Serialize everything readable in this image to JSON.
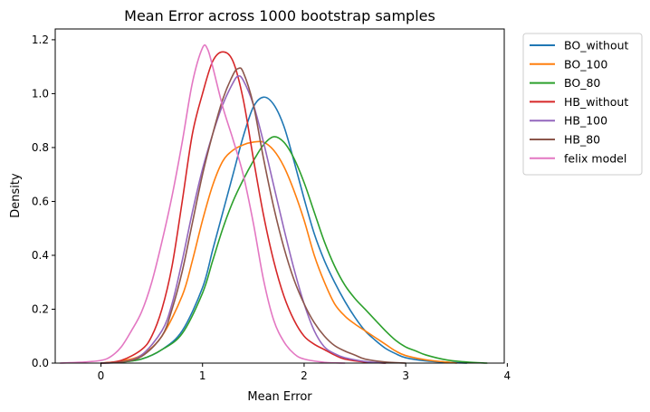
{
  "chart_data": {
    "type": "line",
    "title": "Mean Error across 1000 bootstrap samples",
    "xlabel": "Mean Error",
    "ylabel": "Density",
    "xlim": [
      -0.45,
      3.97
    ],
    "ylim": [
      0,
      1.24
    ],
    "xticks": [
      0,
      1,
      2,
      3,
      4
    ],
    "yticks": [
      0.0,
      0.2,
      0.4,
      0.6,
      0.8,
      1.0,
      1.2
    ],
    "legend_position": "outside-top-right",
    "grid": false,
    "series": [
      {
        "name": "BO_without",
        "color": "#1f77b4",
        "points": [
          [
            0.0,
            0.0
          ],
          [
            0.2,
            0.004
          ],
          [
            0.4,
            0.015
          ],
          [
            0.6,
            0.05
          ],
          [
            0.8,
            0.12
          ],
          [
            1.0,
            0.28
          ],
          [
            1.1,
            0.42
          ],
          [
            1.2,
            0.56
          ],
          [
            1.3,
            0.7
          ],
          [
            1.4,
            0.84
          ],
          [
            1.5,
            0.95
          ],
          [
            1.6,
            0.987
          ],
          [
            1.7,
            0.96
          ],
          [
            1.8,
            0.88
          ],
          [
            1.9,
            0.75
          ],
          [
            2.0,
            0.61
          ],
          [
            2.1,
            0.48
          ],
          [
            2.2,
            0.38
          ],
          [
            2.3,
            0.3
          ],
          [
            2.4,
            0.23
          ],
          [
            2.5,
            0.17
          ],
          [
            2.6,
            0.12
          ],
          [
            2.7,
            0.085
          ],
          [
            2.8,
            0.055
          ],
          [
            2.9,
            0.035
          ],
          [
            3.0,
            0.02
          ],
          [
            3.2,
            0.008
          ],
          [
            3.4,
            0.003
          ],
          [
            3.6,
            0.0
          ]
        ]
      },
      {
        "name": "BO_100",
        "color": "#ff7f0e",
        "points": [
          [
            0.0,
            0.0
          ],
          [
            0.2,
            0.008
          ],
          [
            0.4,
            0.03
          ],
          [
            0.6,
            0.1
          ],
          [
            0.8,
            0.25
          ],
          [
            0.9,
            0.38
          ],
          [
            1.0,
            0.53
          ],
          [
            1.1,
            0.66
          ],
          [
            1.2,
            0.75
          ],
          [
            1.3,
            0.79
          ],
          [
            1.4,
            0.81
          ],
          [
            1.5,
            0.82
          ],
          [
            1.6,
            0.82
          ],
          [
            1.7,
            0.79
          ],
          [
            1.8,
            0.73
          ],
          [
            1.9,
            0.64
          ],
          [
            2.0,
            0.53
          ],
          [
            2.1,
            0.4
          ],
          [
            2.2,
            0.3
          ],
          [
            2.3,
            0.22
          ],
          [
            2.4,
            0.175
          ],
          [
            2.5,
            0.145
          ],
          [
            2.6,
            0.12
          ],
          [
            2.7,
            0.095
          ],
          [
            2.8,
            0.07
          ],
          [
            2.9,
            0.045
          ],
          [
            3.0,
            0.028
          ],
          [
            3.2,
            0.012
          ],
          [
            3.4,
            0.004
          ],
          [
            3.5,
            0.0
          ]
        ]
      },
      {
        "name": "BO_80",
        "color": "#2ca02c",
        "points": [
          [
            0.0,
            0.0
          ],
          [
            0.2,
            0.004
          ],
          [
            0.4,
            0.015
          ],
          [
            0.6,
            0.05
          ],
          [
            0.8,
            0.11
          ],
          [
            1.0,
            0.26
          ],
          [
            1.1,
            0.38
          ],
          [
            1.2,
            0.5
          ],
          [
            1.3,
            0.6
          ],
          [
            1.4,
            0.68
          ],
          [
            1.5,
            0.75
          ],
          [
            1.6,
            0.81
          ],
          [
            1.7,
            0.84
          ],
          [
            1.8,
            0.82
          ],
          [
            1.9,
            0.76
          ],
          [
            2.0,
            0.67
          ],
          [
            2.1,
            0.56
          ],
          [
            2.2,
            0.45
          ],
          [
            2.3,
            0.36
          ],
          [
            2.4,
            0.29
          ],
          [
            2.5,
            0.24
          ],
          [
            2.6,
            0.2
          ],
          [
            2.7,
            0.16
          ],
          [
            2.8,
            0.12
          ],
          [
            2.9,
            0.085
          ],
          [
            3.0,
            0.06
          ],
          [
            3.1,
            0.045
          ],
          [
            3.2,
            0.03
          ],
          [
            3.4,
            0.012
          ],
          [
            3.6,
            0.004
          ],
          [
            3.8,
            0.0
          ]
        ]
      },
      {
        "name": "HB_without",
        "color": "#d62728",
        "points": [
          [
            0.0,
            0.0
          ],
          [
            0.2,
            0.01
          ],
          [
            0.4,
            0.05
          ],
          [
            0.5,
            0.1
          ],
          [
            0.6,
            0.2
          ],
          [
            0.7,
            0.36
          ],
          [
            0.8,
            0.6
          ],
          [
            0.9,
            0.85
          ],
          [
            1.0,
            1.0
          ],
          [
            1.1,
            1.12
          ],
          [
            1.2,
            1.155
          ],
          [
            1.3,
            1.12
          ],
          [
            1.4,
            0.98
          ],
          [
            1.5,
            0.76
          ],
          [
            1.6,
            0.55
          ],
          [
            1.7,
            0.38
          ],
          [
            1.8,
            0.25
          ],
          [
            1.9,
            0.16
          ],
          [
            2.0,
            0.1
          ],
          [
            2.1,
            0.07
          ],
          [
            2.2,
            0.05
          ],
          [
            2.3,
            0.03
          ],
          [
            2.4,
            0.015
          ],
          [
            2.6,
            0.004
          ],
          [
            2.8,
            0.0
          ]
        ]
      },
      {
        "name": "HB_100",
        "color": "#9467bd",
        "points": [
          [
            0.0,
            0.0
          ],
          [
            0.2,
            0.004
          ],
          [
            0.4,
            0.03
          ],
          [
            0.6,
            0.12
          ],
          [
            0.7,
            0.22
          ],
          [
            0.8,
            0.38
          ],
          [
            0.9,
            0.56
          ],
          [
            1.0,
            0.72
          ],
          [
            1.1,
            0.85
          ],
          [
            1.2,
            0.96
          ],
          [
            1.3,
            1.04
          ],
          [
            1.35,
            1.065
          ],
          [
            1.4,
            1.05
          ],
          [
            1.5,
            0.96
          ],
          [
            1.6,
            0.82
          ],
          [
            1.7,
            0.66
          ],
          [
            1.8,
            0.5
          ],
          [
            1.9,
            0.35
          ],
          [
            2.0,
            0.22
          ],
          [
            2.1,
            0.12
          ],
          [
            2.2,
            0.06
          ],
          [
            2.3,
            0.035
          ],
          [
            2.4,
            0.02
          ],
          [
            2.6,
            0.006
          ],
          [
            2.8,
            0.0
          ]
        ]
      },
      {
        "name": "HB_80",
        "color": "#8c564b",
        "points": [
          [
            0.0,
            0.0
          ],
          [
            0.2,
            0.004
          ],
          [
            0.4,
            0.025
          ],
          [
            0.6,
            0.1
          ],
          [
            0.7,
            0.2
          ],
          [
            0.8,
            0.34
          ],
          [
            0.9,
            0.52
          ],
          [
            1.0,
            0.7
          ],
          [
            1.1,
            0.85
          ],
          [
            1.2,
            0.98
          ],
          [
            1.3,
            1.07
          ],
          [
            1.35,
            1.093
          ],
          [
            1.4,
            1.08
          ],
          [
            1.5,
            0.96
          ],
          [
            1.6,
            0.76
          ],
          [
            1.7,
            0.58
          ],
          [
            1.8,
            0.43
          ],
          [
            1.9,
            0.31
          ],
          [
            2.0,
            0.22
          ],
          [
            2.1,
            0.15
          ],
          [
            2.2,
            0.1
          ],
          [
            2.3,
            0.065
          ],
          [
            2.4,
            0.045
          ],
          [
            2.5,
            0.03
          ],
          [
            2.6,
            0.015
          ],
          [
            2.8,
            0.004
          ],
          [
            3.0,
            0.0
          ]
        ]
      },
      {
        "name": "felix model",
        "color": "#e377c2",
        "points": [
          [
            -0.4,
            0.0
          ],
          [
            -0.2,
            0.003
          ],
          [
            0.0,
            0.01
          ],
          [
            0.1,
            0.025
          ],
          [
            0.2,
            0.06
          ],
          [
            0.3,
            0.12
          ],
          [
            0.4,
            0.19
          ],
          [
            0.5,
            0.3
          ],
          [
            0.6,
            0.45
          ],
          [
            0.7,
            0.62
          ],
          [
            0.8,
            0.82
          ],
          [
            0.9,
            1.04
          ],
          [
            1.0,
            1.17
          ],
          [
            1.05,
            1.165
          ],
          [
            1.1,
            1.1
          ],
          [
            1.2,
            0.95
          ],
          [
            1.3,
            0.83
          ],
          [
            1.4,
            0.7
          ],
          [
            1.5,
            0.52
          ],
          [
            1.6,
            0.31
          ],
          [
            1.7,
            0.16
          ],
          [
            1.8,
            0.08
          ],
          [
            1.9,
            0.035
          ],
          [
            2.0,
            0.015
          ],
          [
            2.2,
            0.003
          ],
          [
            2.4,
            0.0
          ]
        ]
      }
    ]
  }
}
